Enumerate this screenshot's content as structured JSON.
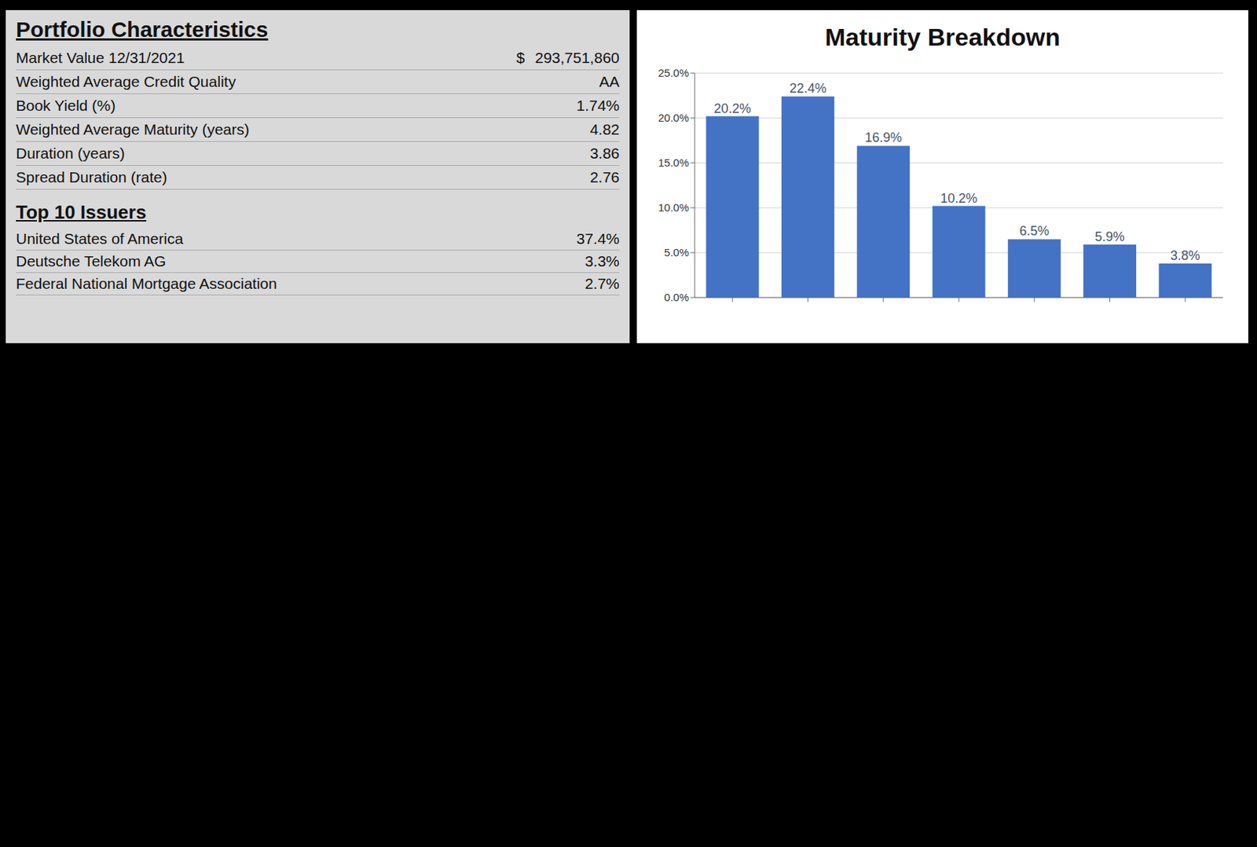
{
  "portfolio_characteristics": {
    "title": "Portfolio Characteristics",
    "rows": [
      {
        "label": "Market Value 12/31/2021",
        "currency": "$",
        "value": "293,751,860"
      },
      {
        "label": "Weighted Average Credit Quality",
        "value": "AA"
      },
      {
        "label": "Book Yield (%)",
        "value": "1.74%"
      },
      {
        "label": "Weighted Average Maturity (years)",
        "value": "4.82"
      },
      {
        "label": "Duration (years)",
        "value": "3.86"
      },
      {
        "label": "Spread Duration (rate)",
        "value": "2.76"
      }
    ]
  },
  "top_issuers": {
    "title": "Top 10 Issuers",
    "rows": [
      {
        "name": "United States of America",
        "share": "37.4%"
      },
      {
        "name": "Deutsche Telekom AG",
        "share": "3.3%"
      },
      {
        "name": "Federal National Mortgage Association",
        "share": "2.7%"
      }
    ]
  },
  "chart_data": {
    "type": "bar",
    "title": "Maturity Breakdown",
    "categories": [
      null,
      null,
      null,
      null,
      null,
      null,
      null
    ],
    "values": [
      20.2,
      22.4,
      16.9,
      10.2,
      6.5,
      5.9,
      3.8
    ],
    "value_labels": [
      "20.2%",
      "22.4%",
      "16.9%",
      "10.2%",
      "6.5%",
      "5.9%",
      "3.8%"
    ],
    "color": "#4472c4",
    "ylim": [
      0,
      25
    ],
    "yticks": [
      {
        "value": 0,
        "label": "0.0%"
      },
      {
        "value": 5,
        "label": "5.0%"
      },
      {
        "value": 10,
        "label": "10.0%"
      },
      {
        "value": 15,
        "label": "15.0%"
      },
      {
        "value": 20,
        "label": "20.0%"
      },
      {
        "value": 25,
        "label": "25.0%"
      }
    ],
    "grid": true,
    "data_labels": true
  }
}
